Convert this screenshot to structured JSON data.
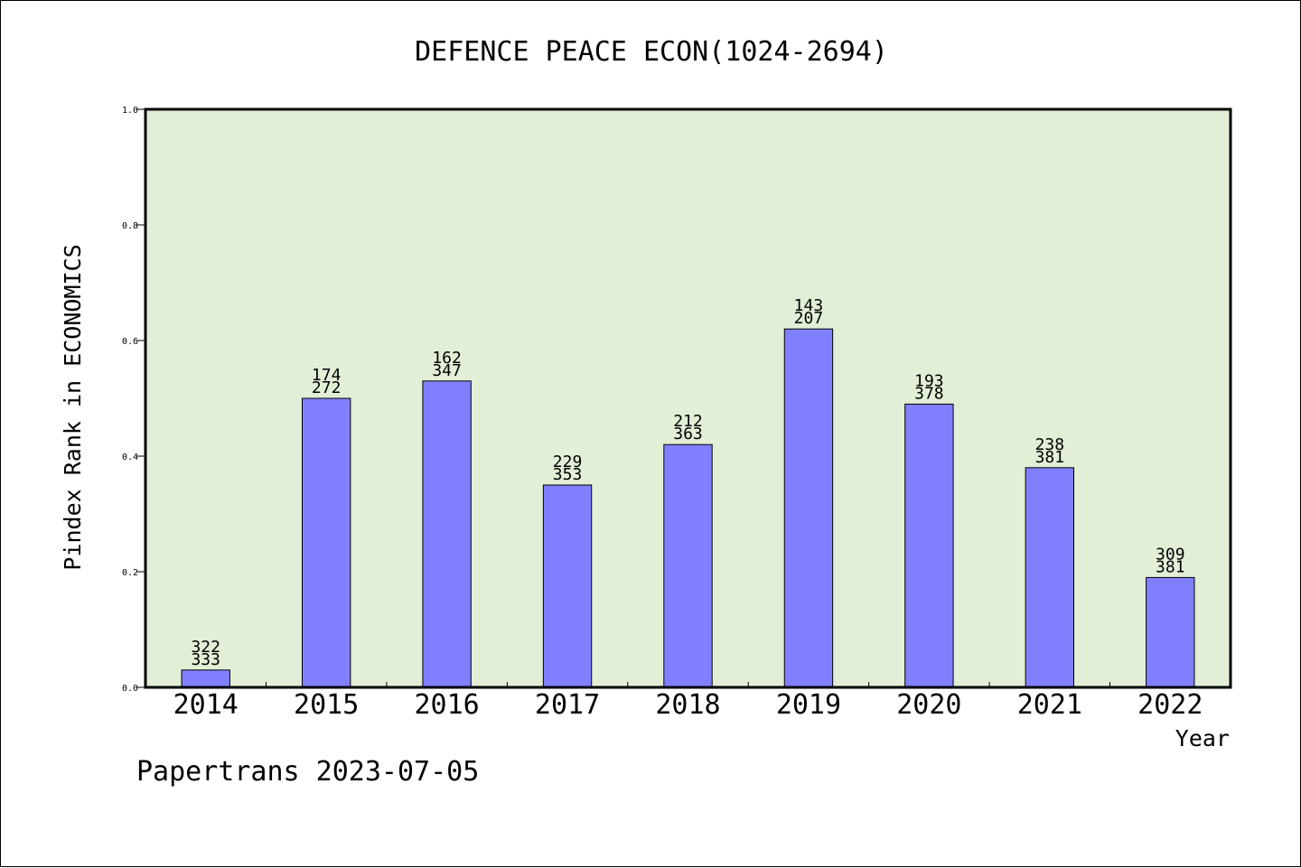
{
  "chart_data": {
    "type": "bar",
    "title": "DEFENCE PEACE ECON(1024-2694)",
    "xlabel": "Year",
    "ylabel": "Pindex Rank in ECONOMICS",
    "ylim": [
      0.0,
      1.0
    ],
    "yticks": [
      "0.0",
      "0.2",
      "0.4",
      "0.6",
      "0.8",
      "1.0"
    ],
    "grid": false,
    "legend": "none",
    "categories": [
      "2014",
      "2015",
      "2016",
      "2017",
      "2018",
      "2019",
      "2020",
      "2021",
      "2022"
    ],
    "values": [
      0.03,
      0.5,
      0.53,
      0.35,
      0.42,
      0.62,
      0.49,
      0.38,
      0.19
    ],
    "labels_top": [
      "322",
      "174",
      "162",
      "229",
      "212",
      "143",
      "193",
      "238",
      "309"
    ],
    "labels_bottom": [
      "333",
      "272",
      "347",
      "353",
      "363",
      "207",
      "378",
      "381",
      "381"
    ]
  },
  "footer": "Papertrans 2023-07-05",
  "colors": {
    "plot_background": "#e2efd6",
    "bar_fill": "#8080ff",
    "bar_stroke": "#000000",
    "axis": "#000000"
  }
}
